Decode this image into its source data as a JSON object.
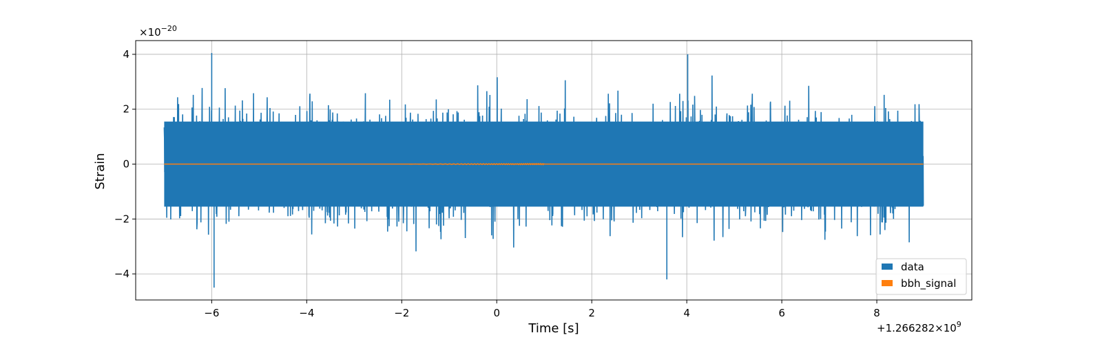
{
  "chart_data": {
    "type": "line",
    "title": "",
    "xlabel": "Time [s]",
    "ylabel": "Strain",
    "x_offset_label": "+1.266282×10",
    "x_offset_exp": "9",
    "y_scale_label": "×10",
    "y_scale_exp": "−20",
    "xlim": [
      -7.6,
      10.0
    ],
    "ylim": [
      -4.95,
      4.5
    ],
    "x_ticks": [
      -6,
      -4,
      -2,
      0,
      2,
      4,
      6,
      8
    ],
    "x_tick_labels": [
      "−6",
      "−4",
      "−2",
      "0",
      "2",
      "4",
      "6",
      "8"
    ],
    "y_ticks": [
      -4,
      -2,
      0,
      2,
      4
    ],
    "y_tick_labels": [
      "−4",
      "−2",
      "0",
      "2",
      "4"
    ],
    "grid": true,
    "legend_position": "lower-right",
    "series": [
      {
        "name": "data",
        "color": "#1f77b4",
        "x_range": [
          -7.0,
          8.98
        ],
        "typical_envelope": [
          -2.4,
          2.4
        ],
        "peaks": [
          {
            "x": -6.0,
            "y": 4.05
          },
          {
            "x": -5.95,
            "y": -4.5
          },
          {
            "x": 4.02,
            "y": 4.0
          },
          {
            "x": 3.58,
            "y": -4.2
          }
        ]
      },
      {
        "name": "bbh_signal",
        "color": "#ff7f0e",
        "x_range": [
          -7.0,
          8.98
        ],
        "values_constant": 0.0,
        "chirp_end_x": 1.0
      }
    ]
  }
}
